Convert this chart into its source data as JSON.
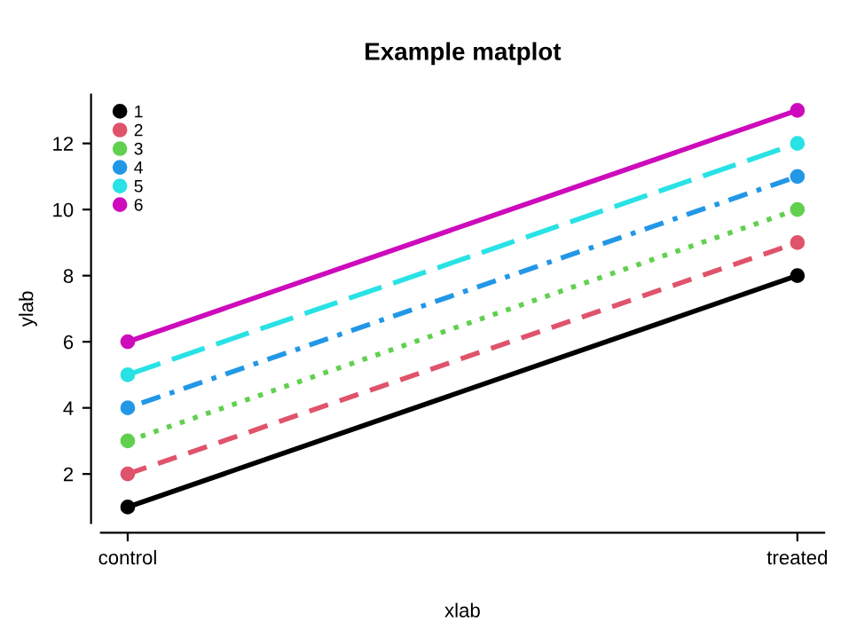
{
  "chart_data": {
    "type": "line",
    "title": "Example matplot",
    "xlabel": "xlab",
    "ylabel": "ylab",
    "categories": [
      "control",
      "treated"
    ],
    "series": [
      {
        "name": "1",
        "color": "#000000",
        "values": [
          1,
          8
        ],
        "line_style": "solid"
      },
      {
        "name": "2",
        "color": "#df536b",
        "values": [
          2,
          9
        ],
        "line_style": "dashed"
      },
      {
        "name": "3",
        "color": "#61d04f",
        "values": [
          3,
          10
        ],
        "line_style": "dotted"
      },
      {
        "name": "4",
        "color": "#2297e6",
        "values": [
          4,
          11
        ],
        "line_style": "dashdot"
      },
      {
        "name": "5",
        "color": "#28e2e5",
        "values": [
          5,
          12
        ],
        "line_style": "longdash"
      },
      {
        "name": "6",
        "color": "#cd0bbc",
        "values": [
          6,
          13
        ],
        "line_style": "solid"
      }
    ],
    "ylim": [
      0.52,
      13.48
    ],
    "yticks": [
      2,
      4,
      6,
      8,
      10,
      12
    ],
    "marker": "circle",
    "legend": "top left",
    "grid": false
  }
}
